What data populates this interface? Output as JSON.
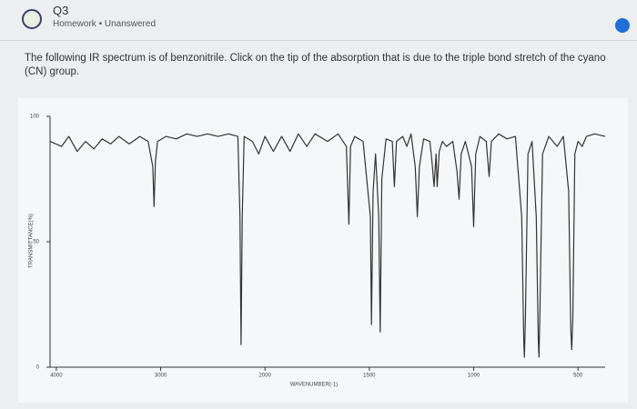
{
  "header": {
    "title": "Q3",
    "category": "Homework",
    "status": "Unanswered"
  },
  "question": "The following IR spectrum is of benzonitrile. Click on the tip of the absorption that is due to the triple bond stretch of the cyano (CN) group.",
  "chart_data": {
    "type": "line",
    "x_label": "WAVENUMBER(-1)",
    "y_label": "TRANSMITTANCE(%)",
    "x": [
      4060,
      3950,
      3880,
      3800,
      3720,
      3640,
      3560,
      3480,
      3400,
      3300,
      3200,
      3120,
      3075,
      3063,
      3050,
      3030,
      2950,
      2850,
      2750,
      2650,
      2550,
      2450,
      2350,
      2260,
      2240,
      2229,
      2218,
      2200,
      2120,
      2060,
      2000,
      1960,
      1920,
      1880,
      1840,
      1800,
      1760,
      1700,
      1650,
      1610,
      1598,
      1590,
      1570,
      1530,
      1495,
      1490,
      1482,
      1470,
      1455,
      1448,
      1440,
      1420,
      1390,
      1380,
      1370,
      1340,
      1320,
      1300,
      1280,
      1270,
      1260,
      1240,
      1210,
      1200,
      1190,
      1180,
      1175,
      1165,
      1150,
      1130,
      1100,
      1080,
      1070,
      1060,
      1040,
      1010,
      1000,
      990,
      970,
      940,
      926,
      915,
      880,
      840,
      800,
      770,
      760,
      757,
      752,
      740,
      720,
      700,
      690,
      687,
      683,
      670,
      640,
      600,
      570,
      545,
      535,
      530,
      525,
      515,
      500,
      480,
      460,
      420,
      370
    ],
    "values": [
      90,
      88,
      92,
      86,
      90,
      87,
      91,
      89,
      92,
      89,
      92,
      90,
      80,
      64,
      82,
      90,
      92,
      91,
      93,
      92,
      93,
      92,
      93,
      92,
      60,
      9,
      60,
      92,
      90,
      85,
      92,
      86,
      92,
      86,
      93,
      88,
      93,
      90,
      93,
      88,
      57,
      88,
      92,
      90,
      60,
      17,
      70,
      85,
      60,
      14,
      75,
      91,
      90,
      72,
      90,
      92,
      88,
      93,
      80,
      60,
      80,
      91,
      90,
      82,
      72,
      85,
      72,
      86,
      90,
      88,
      90,
      78,
      67,
      85,
      90,
      80,
      56,
      85,
      92,
      90,
      76,
      90,
      93,
      91,
      92,
      60,
      10,
      4,
      20,
      85,
      90,
      60,
      10,
      4,
      20,
      85,
      92,
      88,
      92,
      70,
      15,
      7,
      20,
      85,
      90,
      88,
      92,
      93,
      92
    ],
    "color": "#333333",
    "xlim": [
      4060,
      370
    ],
    "ylim": [
      0,
      100
    ],
    "xticks": [
      4000,
      3000,
      2000,
      1500,
      1000,
      500
    ],
    "yticks": [
      0,
      50,
      100
    ]
  }
}
